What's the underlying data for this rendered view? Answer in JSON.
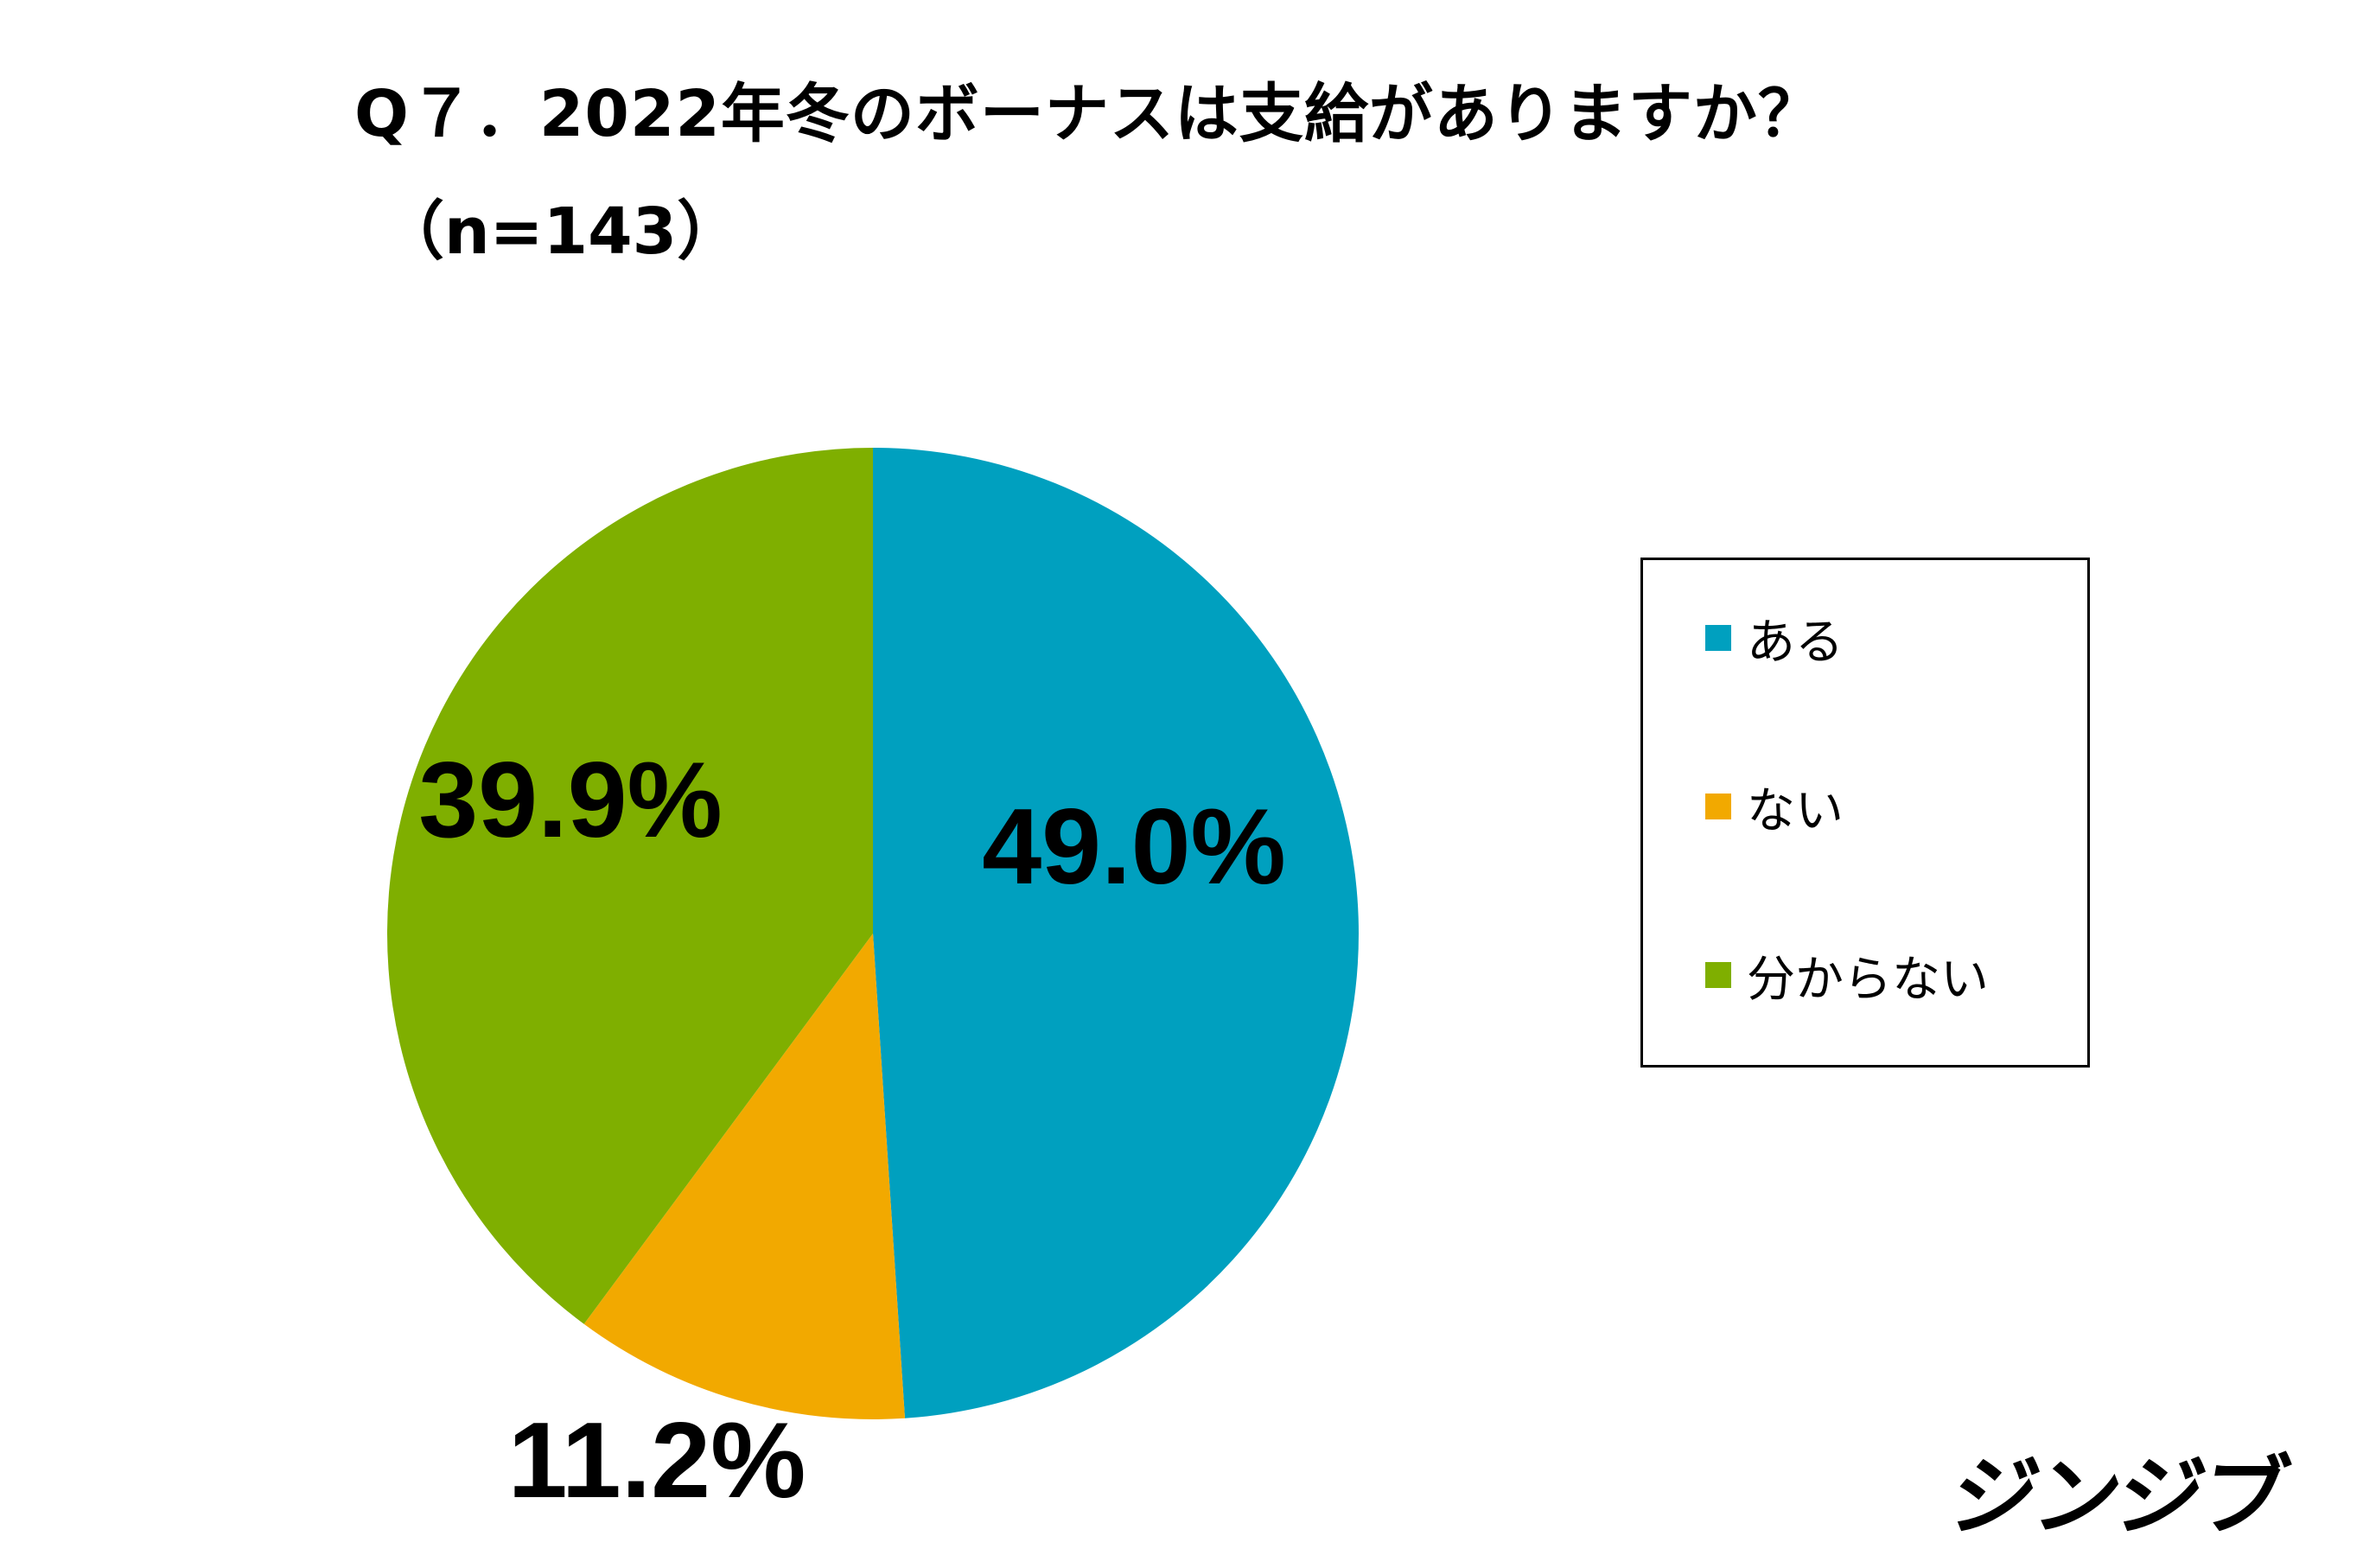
{
  "header": {
    "title": "Q７．2022年冬のボーナスは支給がありますか？",
    "subtitle": "（n=143）"
  },
  "chart_data": {
    "type": "pie",
    "categories": [
      "ある",
      "ない",
      "分からない"
    ],
    "values": [
      49.0,
      11.2,
      39.9
    ],
    "data_labels": [
      "49.0%",
      "11.2%",
      "39.9%"
    ],
    "colors": [
      "#00A0BF",
      "#F2A900",
      "#7FAF00"
    ],
    "start_angle": "12 o'clock",
    "direction": "clockwise",
    "legend_position": "right"
  },
  "legend": {
    "items": [
      {
        "label": "ある",
        "color": "#00A0BF"
      },
      {
        "label": "ない",
        "color": "#F2A900"
      },
      {
        "label": "分からない",
        "color": "#7FAF00"
      }
    ]
  },
  "logo": {
    "text": "ジンジブ"
  }
}
